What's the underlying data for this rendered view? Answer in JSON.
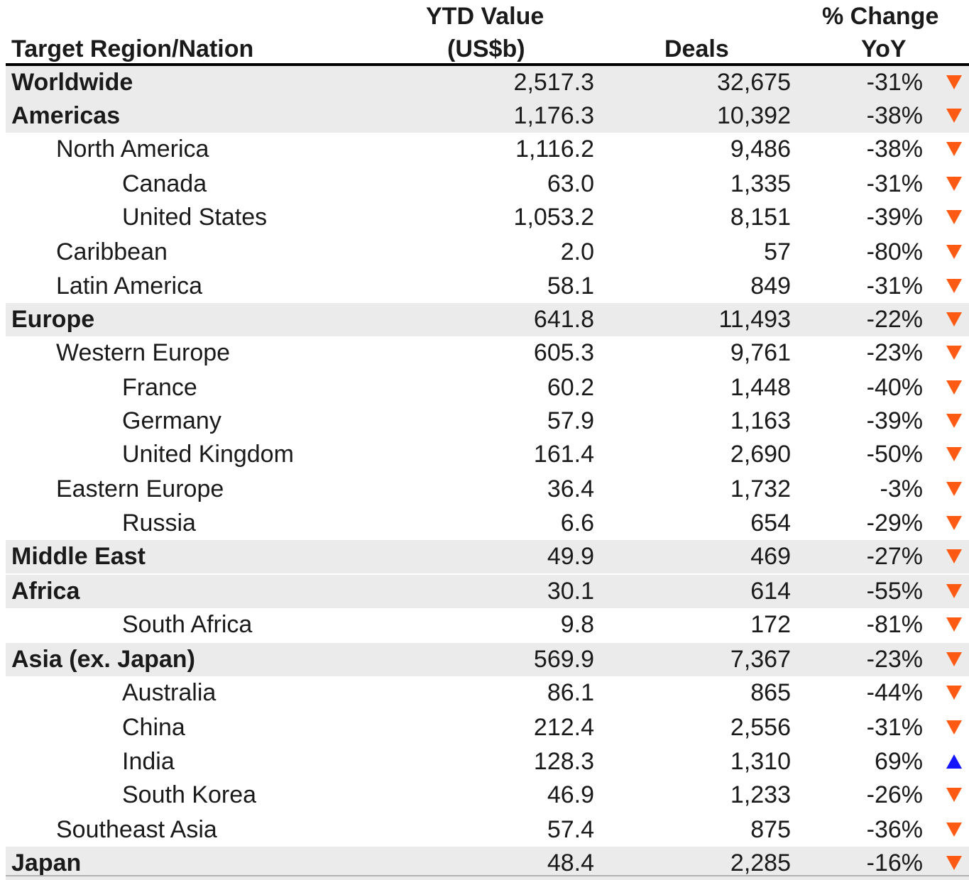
{
  "chart_data": {
    "type": "table",
    "columns": {
      "name": "Target Region/Nation",
      "value_line1": "YTD Value",
      "value_line2": "(US$b)",
      "deals": "Deals",
      "change_line1": "% Change",
      "change_line2": "YoY"
    },
    "colors": {
      "down_arrow": "#ff5a14",
      "up_arrow": "#1414ff",
      "shaded_row": "#ebebeb",
      "header_rule": "#000000"
    },
    "rows": [
      {
        "name": "Worldwide",
        "level": 0,
        "value": "2,517.3",
        "deals": "32,675",
        "change": "-31%",
        "direction": "down"
      },
      {
        "name": "Americas",
        "level": 0,
        "value": "1,176.3",
        "deals": "10,392",
        "change": "-38%",
        "direction": "down"
      },
      {
        "name": "North America",
        "level": 1,
        "value": "1,116.2",
        "deals": "9,486",
        "change": "-38%",
        "direction": "down"
      },
      {
        "name": "Canada",
        "level": 2,
        "value": "63.0",
        "deals": "1,335",
        "change": "-31%",
        "direction": "down"
      },
      {
        "name": "United States",
        "level": 2,
        "value": "1,053.2",
        "deals": "8,151",
        "change": "-39%",
        "direction": "down"
      },
      {
        "name": "Caribbean",
        "level": 1,
        "value": "2.0",
        "deals": "57",
        "change": "-80%",
        "direction": "down"
      },
      {
        "name": "Latin America",
        "level": 1,
        "value": "58.1",
        "deals": "849",
        "change": "-31%",
        "direction": "down"
      },
      {
        "name": "Europe",
        "level": 0,
        "value": "641.8",
        "deals": "11,493",
        "change": "-22%",
        "direction": "down"
      },
      {
        "name": "Western Europe",
        "level": 1,
        "value": "605.3",
        "deals": "9,761",
        "change": "-23%",
        "direction": "down"
      },
      {
        "name": "France",
        "level": 2,
        "value": "60.2",
        "deals": "1,448",
        "change": "-40%",
        "direction": "down"
      },
      {
        "name": "Germany",
        "level": 2,
        "value": "57.9",
        "deals": "1,163",
        "change": "-39%",
        "direction": "down"
      },
      {
        "name": "United Kingdom",
        "level": 2,
        "value": "161.4",
        "deals": "2,690",
        "change": "-50%",
        "direction": "down"
      },
      {
        "name": "Eastern Europe",
        "level": 1,
        "value": "36.4",
        "deals": "1,732",
        "change": "-3%",
        "direction": "down"
      },
      {
        "name": "Russia",
        "level": 2,
        "value": "6.6",
        "deals": "654",
        "change": "-29%",
        "direction": "down"
      },
      {
        "name": "Middle East",
        "level": 0,
        "value": "49.9",
        "deals": "469",
        "change": "-27%",
        "direction": "down"
      },
      {
        "name": "Africa",
        "level": 0,
        "value": "30.1",
        "deals": "614",
        "change": "-55%",
        "direction": "down"
      },
      {
        "name": "South Africa",
        "level": 2,
        "value": "9.8",
        "deals": "172",
        "change": "-81%",
        "direction": "down"
      },
      {
        "name": "Asia (ex. Japan)",
        "level": 0,
        "value": "569.9",
        "deals": "7,367",
        "change": "-23%",
        "direction": "down"
      },
      {
        "name": "Australia",
        "level": 2,
        "value": "86.1",
        "deals": "865",
        "change": "-44%",
        "direction": "down"
      },
      {
        "name": "China",
        "level": 2,
        "value": "212.4",
        "deals": "2,556",
        "change": "-31%",
        "direction": "down"
      },
      {
        "name": "India",
        "level": 2,
        "value": "128.3",
        "deals": "1,310",
        "change": "69%",
        "direction": "up"
      },
      {
        "name": "South Korea",
        "level": 2,
        "value": "46.9",
        "deals": "1,233",
        "change": "-26%",
        "direction": "down"
      },
      {
        "name": "Southeast Asia",
        "level": 1,
        "value": "57.4",
        "deals": "875",
        "change": "-36%",
        "direction": "down"
      },
      {
        "name": "Japan",
        "level": 0,
        "value": "48.4",
        "deals": "2,285",
        "change": "-16%",
        "direction": "down"
      }
    ]
  }
}
